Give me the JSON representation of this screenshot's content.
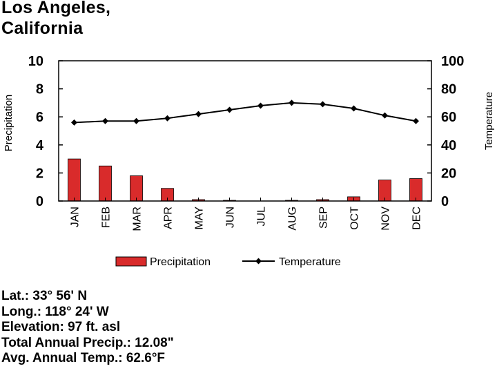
{
  "page": {
    "title_line1": "Los Angeles,",
    "title_line2": "California"
  },
  "chart_data": {
    "type": "bar+line",
    "categories": [
      "JAN",
      "FEB",
      "MAR",
      "APR",
      "MAY",
      "JUN",
      "JUL",
      "AUG",
      "SEP",
      "OCT",
      "NOV",
      "DEC"
    ],
    "series": [
      {
        "name": "Precipitation",
        "type": "bar",
        "axis": "left",
        "values": [
          3.0,
          2.5,
          1.8,
          0.9,
          0.1,
          0.05,
          0.0,
          0.05,
          0.1,
          0.3,
          1.5,
          1.6
        ],
        "color": "#d92b2b"
      },
      {
        "name": "Temperature",
        "type": "line",
        "axis": "right",
        "values": [
          56,
          57,
          57,
          59,
          62,
          65,
          68,
          70,
          69,
          66,
          61,
          57
        ],
        "color": "#000000"
      }
    ],
    "ylabel_left": "Precipitation",
    "ylabel_right": "Temperature",
    "ylim_left": [
      0,
      10
    ],
    "ylim_right": [
      0,
      100
    ],
    "yticks_left": [
      "0",
      "2",
      "4",
      "6",
      "8",
      "10"
    ],
    "yticks_right": [
      "0",
      "20",
      "40",
      "60",
      "80",
      "100"
    ],
    "legend": [
      "Precipitation",
      "Temperature"
    ],
    "legend_position": "bottom",
    "grid": false
  },
  "info": {
    "lat": "Lat.: 33° 56' N",
    "long": "Long.: 118° 24' W",
    "elevation": "Elevation: 97 ft. asl",
    "precip": "Total Annual Precip.: 12.08\"",
    "temp": "Avg. Annual Temp.: 62.6°F"
  }
}
